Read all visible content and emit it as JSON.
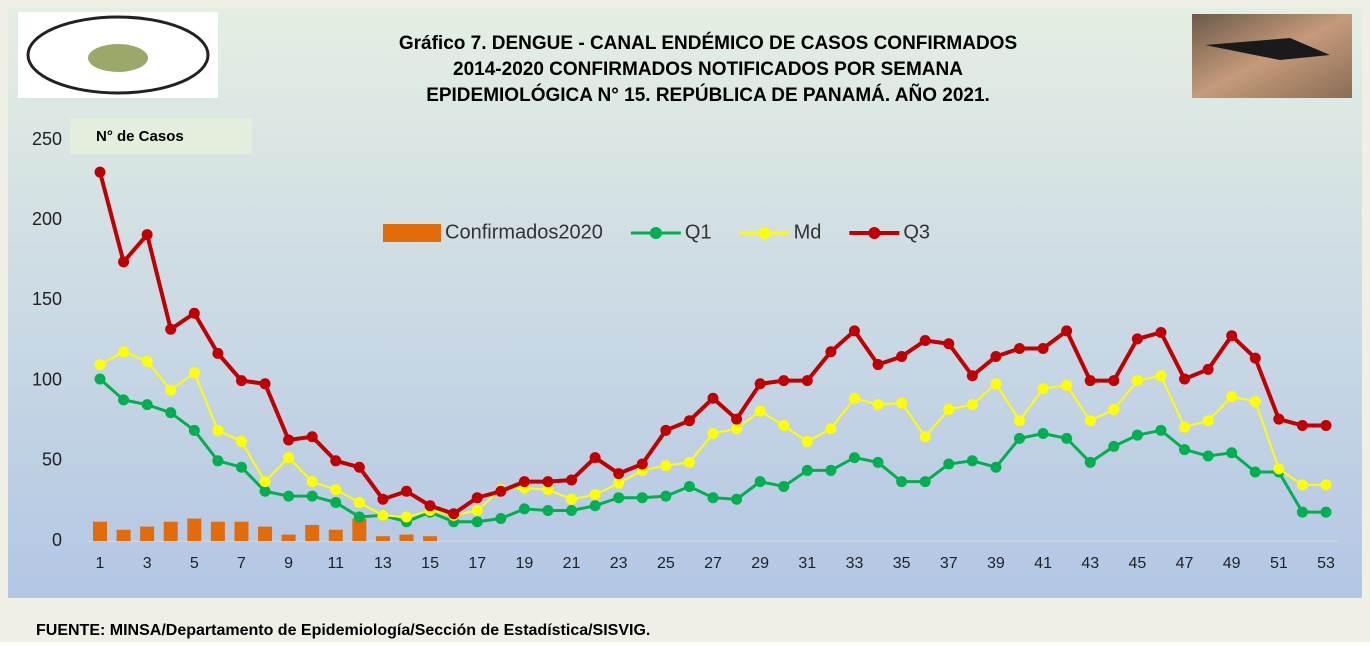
{
  "chart_data": {
    "type": "line",
    "title": [
      "Gráfico 7. DENGUE - CANAL ENDÉMICO DE CASOS CONFIRMADOS",
      "2014-2020  CONFIRMADOS NOTIFICADOS POR SEMANA",
      "EPIDEMIOLÓGICA N° 15. REPÚBLICA DE PANAMÁ. AÑO 2021."
    ],
    "y_label": "N° de Casos",
    "source": "FUENTE: MINSA/Departamento de Epidemiología/Sección de Estadística/SISVIG.",
    "categories": [
      1,
      null,
      3,
      null,
      5,
      null,
      7,
      null,
      9,
      null,
      11,
      null,
      13,
      null,
      15,
      null,
      17,
      null,
      19,
      null,
      21,
      null,
      23,
      null,
      25,
      null,
      27,
      null,
      29,
      null,
      31,
      null,
      33,
      null,
      35,
      null,
      37,
      null,
      39,
      null,
      41,
      null,
      43,
      null,
      45,
      null,
      47,
      null,
      49,
      null,
      51,
      null,
      53
    ],
    "series": [
      {
        "name": "Confirmados2020",
        "type": "bar",
        "color": "#e36c0a",
        "values": [
          12,
          7,
          9,
          12,
          14,
          12,
          12,
          9,
          4,
          10,
          7,
          14,
          3,
          4,
          3,
          null,
          null,
          null,
          null,
          null,
          null,
          null,
          null,
          null,
          null,
          null,
          null,
          null,
          null,
          null,
          null,
          null,
          null,
          null,
          null,
          null,
          null,
          null,
          null,
          null,
          null,
          null,
          null,
          null,
          null,
          null,
          null,
          null,
          null,
          null,
          null,
          null,
          null
        ]
      },
      {
        "name": "Q1",
        "type": "line",
        "color": "#00b050",
        "values": [
          101,
          88,
          85,
          80,
          69,
          50,
          46,
          31,
          28,
          28,
          24,
          15,
          16,
          12,
          18,
          12,
          12,
          14,
          20,
          19,
          19,
          22,
          27,
          27,
          28,
          34,
          27,
          26,
          37,
          34,
          44,
          44,
          52,
          49,
          37,
          37,
          48,
          50,
          46,
          64,
          67,
          64,
          49,
          59,
          66,
          69,
          57,
          53,
          55,
          43,
          43,
          18,
          18
        ]
      },
      {
        "name": "Md",
        "type": "line",
        "color": "#ffff00",
        "values": [
          110,
          118,
          112,
          94,
          105,
          69,
          62,
          37,
          52,
          37,
          32,
          24,
          16,
          15,
          19,
          16,
          19,
          32,
          33,
          32,
          26,
          29,
          36,
          44,
          47,
          49,
          67,
          70,
          81,
          72,
          62,
          70,
          89,
          85,
          86,
          65,
          82,
          85,
          98,
          75,
          95,
          97,
          75,
          82,
          100,
          103,
          71,
          75,
          90,
          87,
          45,
          35,
          35
        ]
      },
      {
        "name": "Q3",
        "type": "line",
        "color": "#c00000",
        "values": [
          230,
          174,
          191,
          132,
          142,
          117,
          100,
          98,
          63,
          65,
          50,
          46,
          26,
          31,
          22,
          17,
          27,
          31,
          37,
          37,
          38,
          52,
          42,
          48,
          69,
          75,
          89,
          76,
          98,
          100,
          100,
          118,
          131,
          110,
          115,
          125,
          123,
          103,
          115,
          120,
          120,
          131,
          100,
          100,
          126,
          130,
          101,
          107,
          128,
          114,
          76,
          72,
          72
        ]
      }
    ],
    "ylim": [
      0,
      250
    ],
    "yticks": [
      0,
      50,
      100,
      150,
      200,
      250
    ],
    "grid": false
  }
}
